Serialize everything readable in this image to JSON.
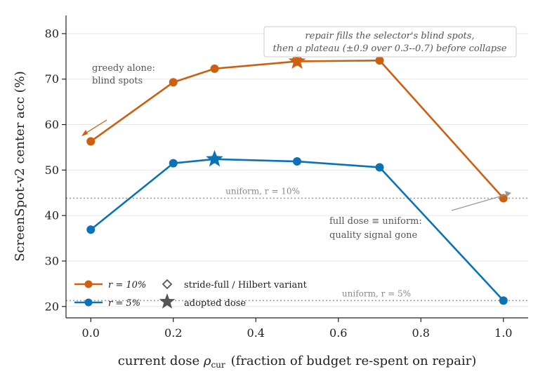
{
  "chart_data": {
    "type": "line",
    "xlabel_main": "current dose",
    "xlabel_symbol": "ρ",
    "xlabel_sub": "cur",
    "xlabel_rest": "(fraction of budget re-spent on repair)",
    "ylabel": "ScreenSpot-v2 center acc (%)",
    "xlim": [
      -0.06,
      1.06
    ],
    "ylim": [
      17.5,
      84
    ],
    "xticks": [
      "0.0",
      "0.2",
      "0.4",
      "0.6",
      "0.8",
      "1.0"
    ],
    "yticks": [
      "20",
      "30",
      "40",
      "50",
      "60",
      "70",
      "80"
    ],
    "grid": "horizontal",
    "series": [
      {
        "name": "r = 10%",
        "color": "#cc6010",
        "x": [
          0.0,
          0.2,
          0.3,
          0.5,
          0.7,
          1.0
        ],
        "y": [
          56.3,
          69.3,
          72.3,
          73.9,
          74.1,
          43.8
        ]
      },
      {
        "name": "r = 5%",
        "color": "#0b72b5",
        "x": [
          0.0,
          0.2,
          0.3,
          0.5,
          0.7,
          1.0
        ],
        "y": [
          36.9,
          51.5,
          52.4,
          51.9,
          50.6,
          21.3
        ]
      }
    ],
    "adopted": [
      {
        "series": "r = 10%",
        "x": 0.5,
        "y": 73.9
      },
      {
        "series": "r = 5%",
        "x": 0.3,
        "y": 52.4
      }
    ],
    "variant": [
      {
        "series": "r = 10%",
        "x": 0.5,
        "y": 74.3
      }
    ],
    "reference_lines": [
      {
        "label": "uniform, r = 10%",
        "y": 43.8
      },
      {
        "label": "uniform, r = 5%",
        "y": 21.3
      }
    ],
    "annotations": {
      "greedy_line1": "greedy alone:",
      "greedy_line2": "blind spots",
      "box_line1": "repair fills the selector's blind spots,",
      "box_line2": "then a plateau (±0.9 over 0.3--0.7) before collapse",
      "full_line1": "full dose ≡ uniform:",
      "full_line2": "quality signal gone"
    },
    "legend": {
      "placement": "bottom-left",
      "variant_label": "stride-full / Hilbert variant",
      "adopted_label": "adopted dose"
    }
  }
}
